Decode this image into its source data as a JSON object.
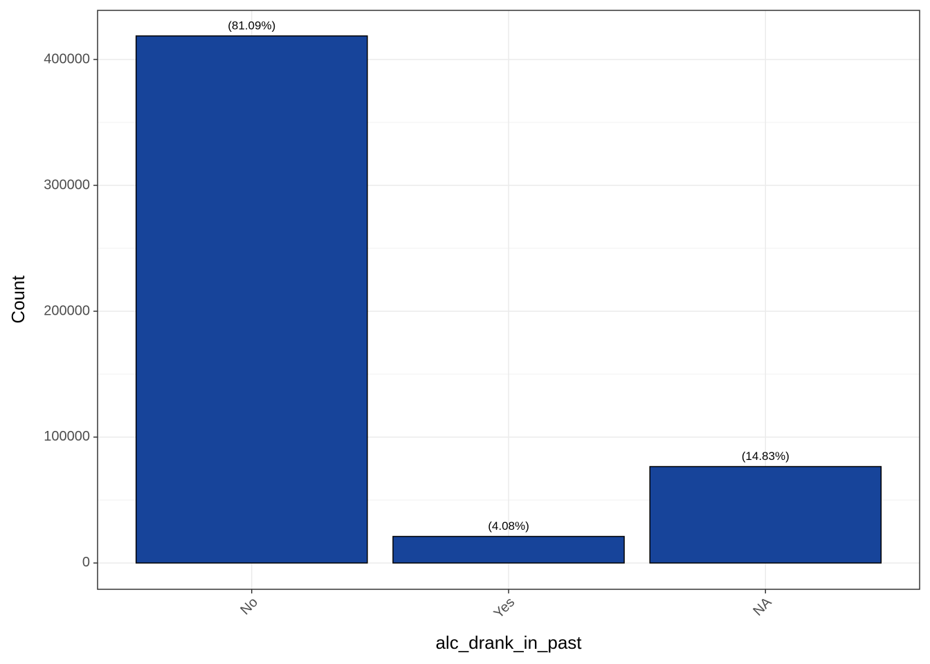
{
  "chart_data": {
    "type": "bar",
    "x_label": "alc_drank_in_past",
    "y_label": "Count",
    "categories": [
      "No",
      "Yes",
      "NA"
    ],
    "values": [
      418700,
      21100,
      76600
    ],
    "annotations": [
      "(81.09%)",
      "(4.08%)",
      "(14.83%)"
    ],
    "color": "#17449a",
    "ylim": [
      -20900,
      439000
    ],
    "yticks": [
      0,
      100000,
      200000,
      300000,
      400000
    ],
    "minor_yticks": [
      50000,
      150000,
      250000,
      350000
    ],
    "grid": true
  }
}
